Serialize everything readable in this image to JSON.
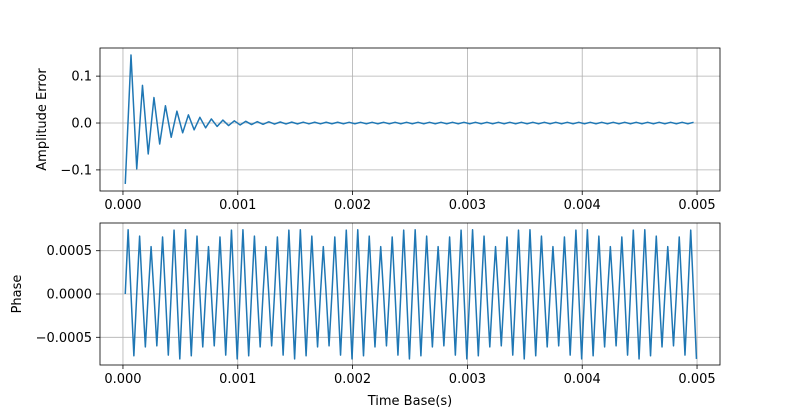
{
  "chart_data": [
    {
      "type": "line",
      "ylabel": "Amplitude Error",
      "xlim": [
        -0.0002,
        0.0052
      ],
      "ylim": [
        -0.145,
        0.16
      ],
      "x_ticks": [
        0.0,
        0.001,
        0.002,
        0.003,
        0.004,
        0.005
      ],
      "x_tick_labels": [
        "0.000",
        "0.001",
        "0.002",
        "0.003",
        "0.004",
        "0.005"
      ],
      "y_ticks": [
        0.1,
        0.0,
        -0.1
      ],
      "y_tick_labels": [
        "0.1",
        "0.0",
        "−0.1"
      ],
      "grid": true,
      "color": "#1f77b4",
      "signal": {
        "x_start": 2e-05,
        "x_end": 0.005,
        "cycle_period": 0.0001,
        "first_min": -0.13,
        "first_peak": 0.145,
        "envelope_decay_time": 0.00025,
        "steady_amplitude": 0.0015
      }
    },
    {
      "type": "line",
      "xlabel": "Time Base(s)",
      "ylabel": "Phase",
      "xlim": [
        -0.0002,
        0.0052
      ],
      "ylim": [
        -0.00082,
        0.00082
      ],
      "x_ticks": [
        0.0,
        0.001,
        0.002,
        0.003,
        0.004,
        0.005
      ],
      "x_tick_labels": [
        "0.000",
        "0.001",
        "0.002",
        "0.003",
        "0.004",
        "0.005"
      ],
      "y_ticks": [
        0.0005,
        0.0,
        -0.0005
      ],
      "y_tick_labels": [
        "0.0005",
        "0.0000",
        "−0.0005"
      ],
      "grid": true,
      "color": "#1f77b4",
      "signal": {
        "x_start": 2e-05,
        "x_end": 0.005,
        "cycle_period": 0.0001,
        "peak_amplitude": 0.00075,
        "beat_period": 0.0005
      }
    }
  ]
}
